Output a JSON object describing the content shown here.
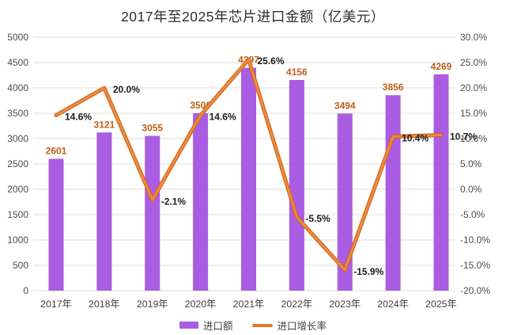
{
  "title": "2017年至2025年芯片进口金额（亿美元）",
  "chart_data": {
    "type": "bar",
    "subtype": "bar+line combo",
    "title": "2017年至2025年芯片进口金额（亿美元）",
    "categories": [
      "2017年",
      "2018年",
      "2019年",
      "2020年",
      "2021年",
      "2022年",
      "2023年",
      "2024年",
      "2025年"
    ],
    "series": [
      {
        "name": "进口额",
        "type": "bar",
        "axis": "left",
        "color": "#AA5CE3",
        "values": [
          2601,
          3121,
          3055,
          3500,
          4397,
          4156,
          3494,
          3856,
          4269
        ],
        "value_labels": [
          "2601",
          "3121",
          "3055",
          "3500",
          "4397",
          "4156",
          "3494",
          "3856",
          "4269"
        ],
        "label_color": "#BF5E17"
      },
      {
        "name": "进口增长率",
        "type": "line",
        "axis": "right",
        "color": "#E2772E",
        "values": [
          14.6,
          20.0,
          -2.1,
          14.6,
          25.6,
          -5.5,
          -15.9,
          10.4,
          10.7
        ],
        "value_labels": [
          "14.6%",
          "20.0%",
          "-2.1%",
          "14.6%",
          "25.6%",
          "-5.5%",
          "-15.9%",
          "10.4%",
          "10.7%"
        ],
        "label_color": "#1c1c1c"
      }
    ],
    "left_axis": {
      "min": 0,
      "max": 5000,
      "step": 500,
      "ticks": [
        "0",
        "500",
        "1000",
        "1500",
        "2000",
        "2500",
        "3000",
        "3500",
        "4000",
        "4500",
        "5000"
      ]
    },
    "right_axis": {
      "min": -20,
      "max": 30,
      "step": 5,
      "ticks": [
        "-20.0%",
        "-15.0%",
        "-10.0%",
        "-5.0%",
        "0.0%",
        "5.0%",
        "10.0%",
        "15.0%",
        "20.0%",
        "25.0%",
        "30.0%"
      ]
    },
    "grid": true,
    "grid_color": "#DCDCDC",
    "legend_position": "bottom"
  },
  "legend": {
    "items": [
      {
        "label": "进口额",
        "swatch": "bar",
        "color": "#AA5CE3"
      },
      {
        "label": "进口增长率",
        "swatch": "line",
        "color": "#E2772E"
      }
    ]
  }
}
